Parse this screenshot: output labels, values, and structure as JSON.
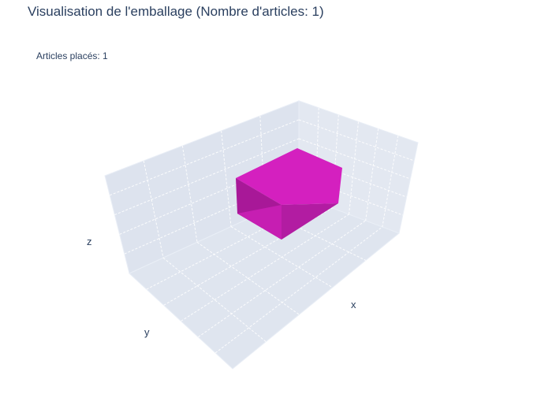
{
  "title": "Visualisation de l'emballage (Nombre d'articles: 1)",
  "annotation": "Articles placés: 1",
  "chart_data": {
    "type": "mesh3d",
    "xlabel": "x",
    "ylabel": "y",
    "zlabel": "z",
    "scene_background": "#e5ecf6",
    "gridline_color": "#ffffff",
    "grid": true,
    "legend": "none",
    "items_placed": 1,
    "series": [
      {
        "color": "#d420bf",
        "shade_color": "#a81898"
      }
    ]
  }
}
